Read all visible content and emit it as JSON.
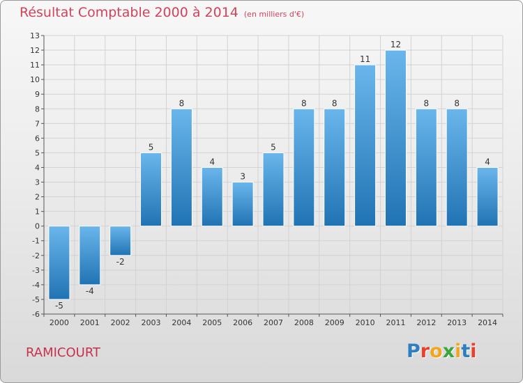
{
  "title": "Résultat Comptable 2000 à 2014",
  "subtitle": "(en milliers d'€)",
  "commune": "RAMICOURT",
  "logo": {
    "text": "Proxiti",
    "colors": [
      "#2f7fc0",
      "#e8402c",
      "#f2a51f",
      "#3aa63a",
      "#f2a51f",
      "#2f7fc0",
      "#e8402c"
    ]
  },
  "colors": {
    "title": "#d0435a",
    "bar_top": "#6ab6ec",
    "bar_bottom": "#2073b3"
  },
  "chart_data": {
    "type": "bar",
    "title": "Résultat Comptable 2000 à 2014",
    "ylabel": "en milliers d'€",
    "xlabel": "",
    "categories": [
      "2000",
      "2001",
      "2002",
      "2003",
      "2004",
      "2005",
      "2006",
      "2007",
      "2008",
      "2009",
      "2010",
      "2011",
      "2012",
      "2013",
      "2014"
    ],
    "values": [
      -5,
      -4,
      -2,
      5,
      8,
      4,
      3,
      5,
      8,
      8,
      11,
      12,
      8,
      8,
      4
    ],
    "ylim": [
      -6,
      13
    ],
    "yticks": [
      13,
      12,
      11,
      10,
      9,
      8,
      7,
      6,
      5,
      4,
      3,
      2,
      1,
      0,
      -1,
      -2,
      -3,
      -4,
      -5,
      -6
    ],
    "grid": true
  }
}
